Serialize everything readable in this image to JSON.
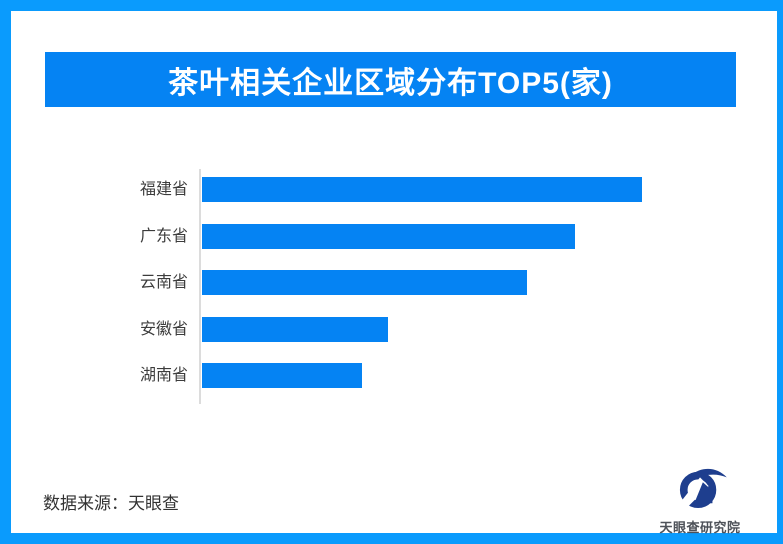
{
  "page": {
    "background_color": "#ffffff",
    "frame_border_color": "#0a9bfd"
  },
  "header": {
    "title": "茶叶相关企业区域分布TOP5(家)",
    "banner_color": "#0583f3",
    "title_text_color": "#ffffff"
  },
  "chart_data": {
    "type": "bar",
    "orientation": "horizontal",
    "title": "茶叶相关企业区域分布TOP5(家)",
    "categories": [
      "福建省",
      "广东省",
      "云南省",
      "安徽省",
      "湖南省"
    ],
    "values_relative": [
      100,
      84.8,
      73.9,
      42.3,
      36.4
    ],
    "value_scale_note": "chart shows no numeric axis, ticks or data labels; values are relative bar lengths normalized to longest bar (福建省) = 100",
    "xlabel": "",
    "ylabel": "",
    "grid": false,
    "legend": "none",
    "bar_color": "#0583f3",
    "axis_line_color": "#dcdcdc",
    "category_label_color": "#3c3c3c"
  },
  "footer": {
    "source_text": "数据来源：天眼查",
    "logo_text": "天眼查研究院",
    "logo_color": "#1e3e8e"
  }
}
